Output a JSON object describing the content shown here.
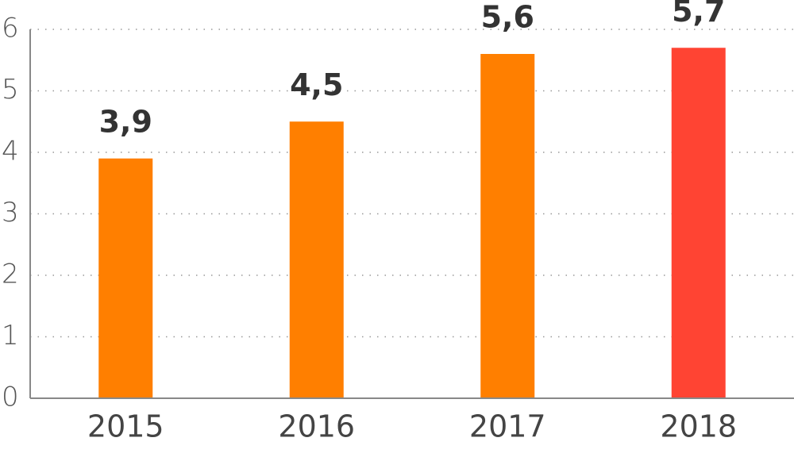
{
  "chart_data": {
    "type": "bar",
    "categories": [
      "2015",
      "2016",
      "2017",
      "2018"
    ],
    "values": [
      3.9,
      4.5,
      5.6,
      5.7
    ],
    "value_labels": [
      "3,9",
      "4,5",
      "5,6",
      "5,7"
    ],
    "colors": [
      "#ff7f00",
      "#ff7f00",
      "#ff7f00",
      "#ff4433"
    ],
    "ylim": [
      0,
      6
    ],
    "yticks": [
      0,
      1,
      2,
      3,
      4,
      5,
      6
    ],
    "grid": true
  }
}
